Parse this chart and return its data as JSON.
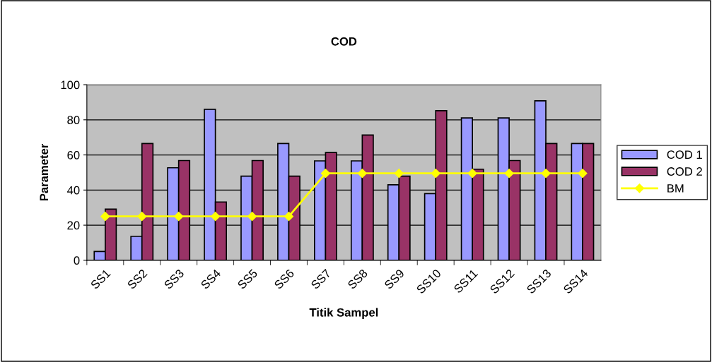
{
  "chart_data": {
    "type": "bar",
    "title": "COD",
    "xlabel": "Titik Sampel",
    "ylabel": "Parameter",
    "categories": [
      "SS1",
      "SS2",
      "SS3",
      "SS4",
      "SS5",
      "SS6",
      "SS7",
      "SS8",
      "SS9",
      "SS10",
      "SS11",
      "SS12",
      "SS13",
      "SS14"
    ],
    "series": [
      {
        "name": "COD 1",
        "color": "#9999ff",
        "values": [
          5,
          13.6,
          52.7,
          86,
          47.9,
          66.5,
          56.6,
          56.6,
          43,
          38,
          81.1,
          81.1,
          90.8,
          66.5
        ]
      },
      {
        "name": "COD 2",
        "color": "#993366",
        "values": [
          29.1,
          66.5,
          56.8,
          33.2,
          56.8,
          47.9,
          61.4,
          71.3,
          47.9,
          85.2,
          51.9,
          56.8,
          66.5,
          66.5
        ]
      },
      {
        "name": "BM",
        "type": "line",
        "color": "#ffff00",
        "marker": "diamond",
        "values": [
          25,
          25,
          25,
          25,
          25,
          25,
          49.5,
          49.5,
          49.5,
          49.5,
          49.5,
          49.5,
          49.5,
          49.5
        ]
      }
    ],
    "ylim": [
      0,
      100
    ],
    "yticks": [
      0,
      20,
      40,
      60,
      80,
      100
    ],
    "grid": "y",
    "legend": "right"
  }
}
